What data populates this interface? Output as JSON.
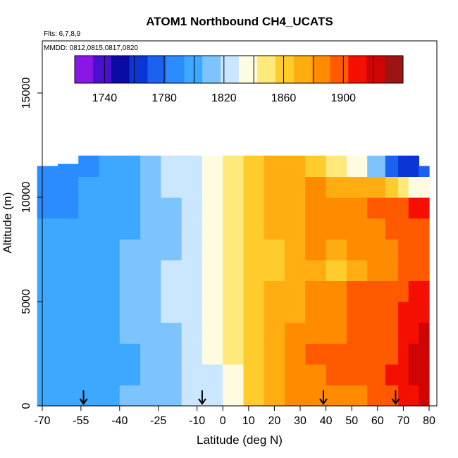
{
  "chart_data": {
    "type": "heatmap",
    "title": "ATOM1 Northbound CH4_UCATS",
    "subtitle_lines": [
      "Flts: 6,7,8,9",
      "MMDD: 0812,0815,0817,0820"
    ],
    "xlabel": "Latitude (deg N)",
    "ylabel": "Altitude (m)",
    "xlim": [
      -70,
      83
    ],
    "ylim": [
      0,
      17500
    ],
    "x_ticks": [
      -70,
      -55,
      -40,
      -25,
      -10,
      0,
      10,
      20,
      30,
      40,
      50,
      60,
      70,
      80
    ],
    "y_ticks": [
      0,
      5000,
      10000,
      15000
    ],
    "colorbar": {
      "range": [
        1720,
        1940
      ],
      "labels": [
        1740,
        1780,
        1820,
        1860,
        1900
      ],
      "colors": [
        "#8b17e6",
        "#4a0fd0",
        "#0a0aa5",
        "#0b36d6",
        "#1b62f0",
        "#2a8cff",
        "#3ca8ff",
        "#7dc4ff",
        "#cbe6ff",
        "#fffbe0",
        "#ffe97a",
        "#ffcc2e",
        "#ffad10",
        "#ff8c00",
        "#ff5a00",
        "#f50f00",
        "#cf0505",
        "#9e1414"
      ]
    },
    "flight_days_markers_lat": [
      -54,
      -8,
      39,
      67
    ],
    "value_grid": {
      "lat": [
        -68,
        -60,
        -52,
        -44,
        -36,
        -28,
        -20,
        -12,
        -4,
        4,
        12,
        20,
        28,
        36,
        44,
        52,
        60,
        66,
        70,
        74,
        78
      ],
      "alt": [
        500,
        1500,
        2500,
        3500,
        4500,
        5500,
        6500,
        7500,
        8500,
        9500,
        10500,
        11500
      ],
      "top_alt": [
        11500,
        11600,
        12000,
        12000,
        12000,
        12000,
        12000,
        12000,
        12000,
        12000,
        12000,
        12000,
        12000,
        12000,
        12000,
        12000,
        12000,
        12000,
        12000,
        12000,
        11500
      ],
      "values": [
        [
          1800,
          1802,
          1803,
          1804,
          1806,
          1808,
          1812,
          1818,
          1826,
          1838,
          1856,
          1870,
          1880,
          1890,
          1888,
          1890,
          1895,
          1900,
          1910,
          1915,
          1918
        ],
        [
          1798,
          1800,
          1801,
          1803,
          1805,
          1808,
          1812,
          1818,
          1828,
          1842,
          1860,
          1876,
          1884,
          1890,
          1895,
          1900,
          1898,
          1905,
          1912,
          1920,
          1922
        ],
        [
          1797,
          1799,
          1800,
          1802,
          1805,
          1809,
          1814,
          1820,
          1832,
          1848,
          1864,
          1876,
          1886,
          1892,
          1896,
          1900,
          1898,
          1902,
          1910,
          1918,
          1922
        ],
        [
          1796,
          1798,
          1800,
          1803,
          1806,
          1810,
          1816,
          1824,
          1836,
          1850,
          1864,
          1874,
          1880,
          1886,
          1890,
          1895,
          1893,
          1898,
          1905,
          1912,
          1918
        ],
        [
          1798,
          1800,
          1802,
          1805,
          1808,
          1812,
          1818,
          1826,
          1838,
          1852,
          1864,
          1872,
          1878,
          1884,
          1890,
          1897,
          1898,
          1902,
          1906,
          1910,
          1912
        ],
        [
          1796,
          1799,
          1802,
          1805,
          1809,
          1813,
          1819,
          1827,
          1838,
          1850,
          1860,
          1868,
          1874,
          1880,
          1888,
          1894,
          1896,
          1898,
          1902,
          1906,
          1910
        ],
        [
          1794,
          1797,
          1800,
          1804,
          1808,
          1812,
          1818,
          1826,
          1836,
          1848,
          1858,
          1866,
          1872,
          1878,
          1862,
          1874,
          1884,
          1888,
          1892,
          1896,
          1900
        ],
        [
          1794,
          1797,
          1800,
          1804,
          1808,
          1812,
          1816,
          1822,
          1832,
          1846,
          1858,
          1866,
          1874,
          1880,
          1874,
          1880,
          1886,
          1890,
          1894,
          1898,
          1902
        ],
        [
          1794,
          1796,
          1798,
          1800,
          1804,
          1810,
          1816,
          1824,
          1834,
          1848,
          1860,
          1870,
          1876,
          1880,
          1882,
          1886,
          1890,
          1894,
          1898,
          1900,
          1902
        ],
        [
          1790,
          1793,
          1796,
          1799,
          1803,
          1808,
          1815,
          1824,
          1836,
          1850,
          1862,
          1872,
          1878,
          1884,
          1886,
          1890,
          1894,
          1898,
          1902,
          1904,
          1906
        ],
        [
          1788,
          1791,
          1795,
          1799,
          1804,
          1810,
          1818,
          1828,
          1840,
          1852,
          1862,
          1870,
          1876,
          1880,
          1878,
          1874,
          1868,
          1860,
          1850,
          1840,
          1830
        ],
        [
          1786,
          1789,
          1793,
          1797,
          1803,
          1810,
          1818,
          1828,
          1842,
          1854,
          1862,
          1868,
          1870,
          1860,
          1850,
          1836,
          1810,
          1772,
          1758,
          1766,
          1780
        ]
      ]
    }
  }
}
